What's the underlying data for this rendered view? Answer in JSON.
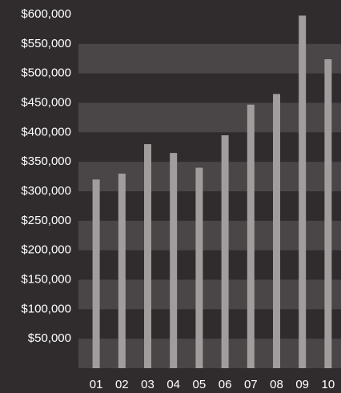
{
  "chart_data": {
    "type": "bar",
    "categories": [
      "01",
      "02",
      "03",
      "04",
      "05",
      "06",
      "07",
      "08",
      "09",
      "10"
    ],
    "values": [
      320000,
      330000,
      380000,
      365000,
      340000,
      395000,
      447000,
      465000,
      598000,
      524000
    ],
    "color": "#a19d9d",
    "ylim": [
      0,
      600000
    ],
    "yticks": [
      {
        "value": 50000,
        "label": "$50,000"
      },
      {
        "value": 100000,
        "label": "$100,000"
      },
      {
        "value": 150000,
        "label": "$150,000"
      },
      {
        "value": 200000,
        "label": "$200,000"
      },
      {
        "value": 250000,
        "label": "$250,000"
      },
      {
        "value": 300000,
        "label": "$300,000"
      },
      {
        "value": 350000,
        "label": "$350,000"
      },
      {
        "value": 400000,
        "label": "$400,000"
      },
      {
        "value": 450000,
        "label": "$450,000"
      },
      {
        "value": 500000,
        "label": "$500,000"
      },
      {
        "value": 550000,
        "label": "$550,000"
      },
      {
        "value": 600000,
        "label": "$600,000"
      }
    ],
    "grid": true
  }
}
